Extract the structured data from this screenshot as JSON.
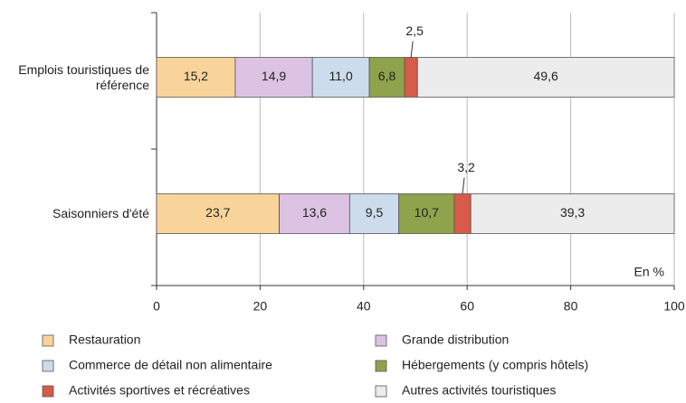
{
  "chart_data": {
    "type": "bar",
    "orientation": "horizontal",
    "stacked": true,
    "categories": [
      "Emplois touristiques de référence",
      "Saisonniers d'été"
    ],
    "series": [
      {
        "name": "Restauration",
        "color": "#f8d49a",
        "values": [
          15.2,
          23.7
        ],
        "value_labels": [
          "15,2",
          "23,7"
        ]
      },
      {
        "name": "Grande distribution",
        "color": "#dcc3e3",
        "values": [
          14.9,
          13.6
        ],
        "value_labels": [
          "14,9",
          "13,6"
        ]
      },
      {
        "name": "Commerce de détail non alimentaire",
        "color": "#cddcec",
        "values": [
          11.0,
          9.5
        ],
        "value_labels": [
          "11,0",
          "9,5"
        ]
      },
      {
        "name": "Hébergements (y compris hôtels)",
        "color": "#8fa34c",
        "values": [
          6.8,
          10.7
        ],
        "value_labels": [
          "6,8",
          "10,7"
        ]
      },
      {
        "name": "Activités sportives et récréatives",
        "color": "#d85a48",
        "values": [
          2.5,
          3.2
        ],
        "value_labels": [
          "2,5",
          "3,2"
        ]
      },
      {
        "name": "Autres activités touristiques",
        "color": "#ececec",
        "values": [
          49.6,
          39.3
        ],
        "value_labels": [
          "49,6",
          "39,3"
        ]
      }
    ],
    "xlim": [
      0,
      100
    ],
    "xticks": [
      0,
      20,
      40,
      60,
      80,
      100
    ],
    "grid": true,
    "annotation": "En %"
  }
}
